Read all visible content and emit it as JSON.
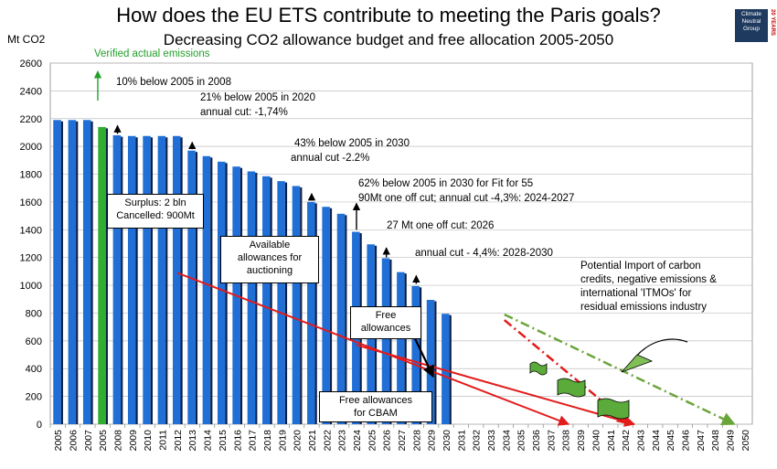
{
  "title": "How does the EU ETS contribute to meeting the Paris goals?",
  "subtitle": "Decreasing CO2 allowance budget and free allocation  2005-2050",
  "y_unit": "Mt CO2",
  "logo": {
    "line1": "Climate",
    "line2": "Neutral",
    "line3": "Group",
    "badge": "20 YEARS"
  },
  "colors": {
    "bar": "#1f6fd6",
    "bar_dark": "#0a1f4a",
    "highlight": "#2fae2f",
    "red": "#e21b1b",
    "green_dash": "#6aa53a",
    "text_green": "#22a02a"
  },
  "annotations": {
    "verified": "Verified actual emissions",
    "a2008": "10% below 2005 in 2008",
    "a2020_1": "21% below 2005 in 2020",
    "a2020_2": "annual cut: -1,74%",
    "a2030_1": "43% below 2005 in 2030",
    "a2030_2": "annual cut  -2.2%",
    "a55_1": "62% below 2005 in 2030 for Fit for 55",
    "a55_2": "90Mt one off cut; annual cut -4,3%: 2024-2027",
    "a2026": "27 Mt one off cut: 2026",
    "a2028": "annual cut - 4,4%:  2028-2030",
    "import_1": "Potential Import of carbon",
    "import_2": "credits, negative emissions &",
    "import_3": "international 'ITMOs' for",
    "import_4": "residual emissions industry"
  },
  "boxes": {
    "surplus_1": "Surplus: 2 bln",
    "surplus_2": "Cancelled: 900Mt",
    "available_1": "Available",
    "available_2": "allowances for",
    "available_3": "auctioning",
    "free_1": "Free",
    "free_2": "allowances",
    "cbam_1": "Free allowances",
    "cbam_2": "for CBAM"
  },
  "chart_data": {
    "type": "bar",
    "categories": [
      "2005",
      "2006",
      "2007",
      "2005",
      "2008",
      "2009",
      "2010",
      "2011",
      "2012",
      "2013",
      "2014",
      "2015",
      "2016",
      "2017",
      "2018",
      "2019",
      "2020",
      "2021",
      "2022",
      "2023",
      "2024",
      "2025",
      "2026",
      "2027",
      "2028",
      "2029",
      "2030",
      "2031",
      "2032",
      "2033",
      "2034",
      "2035",
      "2036",
      "2037",
      "2038",
      "2039",
      "2040",
      "2041",
      "2042",
      "2043",
      "2044",
      "2045",
      "2046",
      "2047",
      "2048",
      "2049",
      "2050"
    ],
    "values": [
      2190,
      2190,
      2190,
      2140,
      2080,
      2075,
      2075,
      2075,
      2075,
      1970,
      1930,
      1890,
      1855,
      1820,
      1785,
      1750,
      1715,
      1600,
      1565,
      1515,
      1385,
      1295,
      1195,
      1095,
      995,
      895,
      795,
      null,
      null,
      null,
      null,
      null,
      null,
      null,
      null,
      null,
      null,
      null,
      null,
      null,
      null,
      null,
      null,
      null,
      null,
      null,
      null
    ],
    "highlight_index": 3,
    "ylim": [
      0,
      2600
    ],
    "yticks": [
      0,
      200,
      400,
      600,
      800,
      1000,
      1200,
      1400,
      1600,
      1800,
      2000,
      2200,
      2400,
      2600
    ],
    "grid": true,
    "lines": [
      {
        "style": "red-solid",
        "points": [
          [
            8,
            1090
          ],
          [
            34.2,
            0
          ]
        ]
      },
      {
        "style": "red-solid",
        "points": [
          [
            20,
            570
          ],
          [
            38.6,
            0
          ]
        ]
      },
      {
        "style": "red-dashdot",
        "points": [
          [
            29.9,
            750
          ],
          [
            38.3,
            0
          ]
        ]
      },
      {
        "style": "green-dashdot",
        "points": [
          [
            29.9,
            790
          ],
          [
            45.3,
            0
          ]
        ]
      }
    ]
  }
}
